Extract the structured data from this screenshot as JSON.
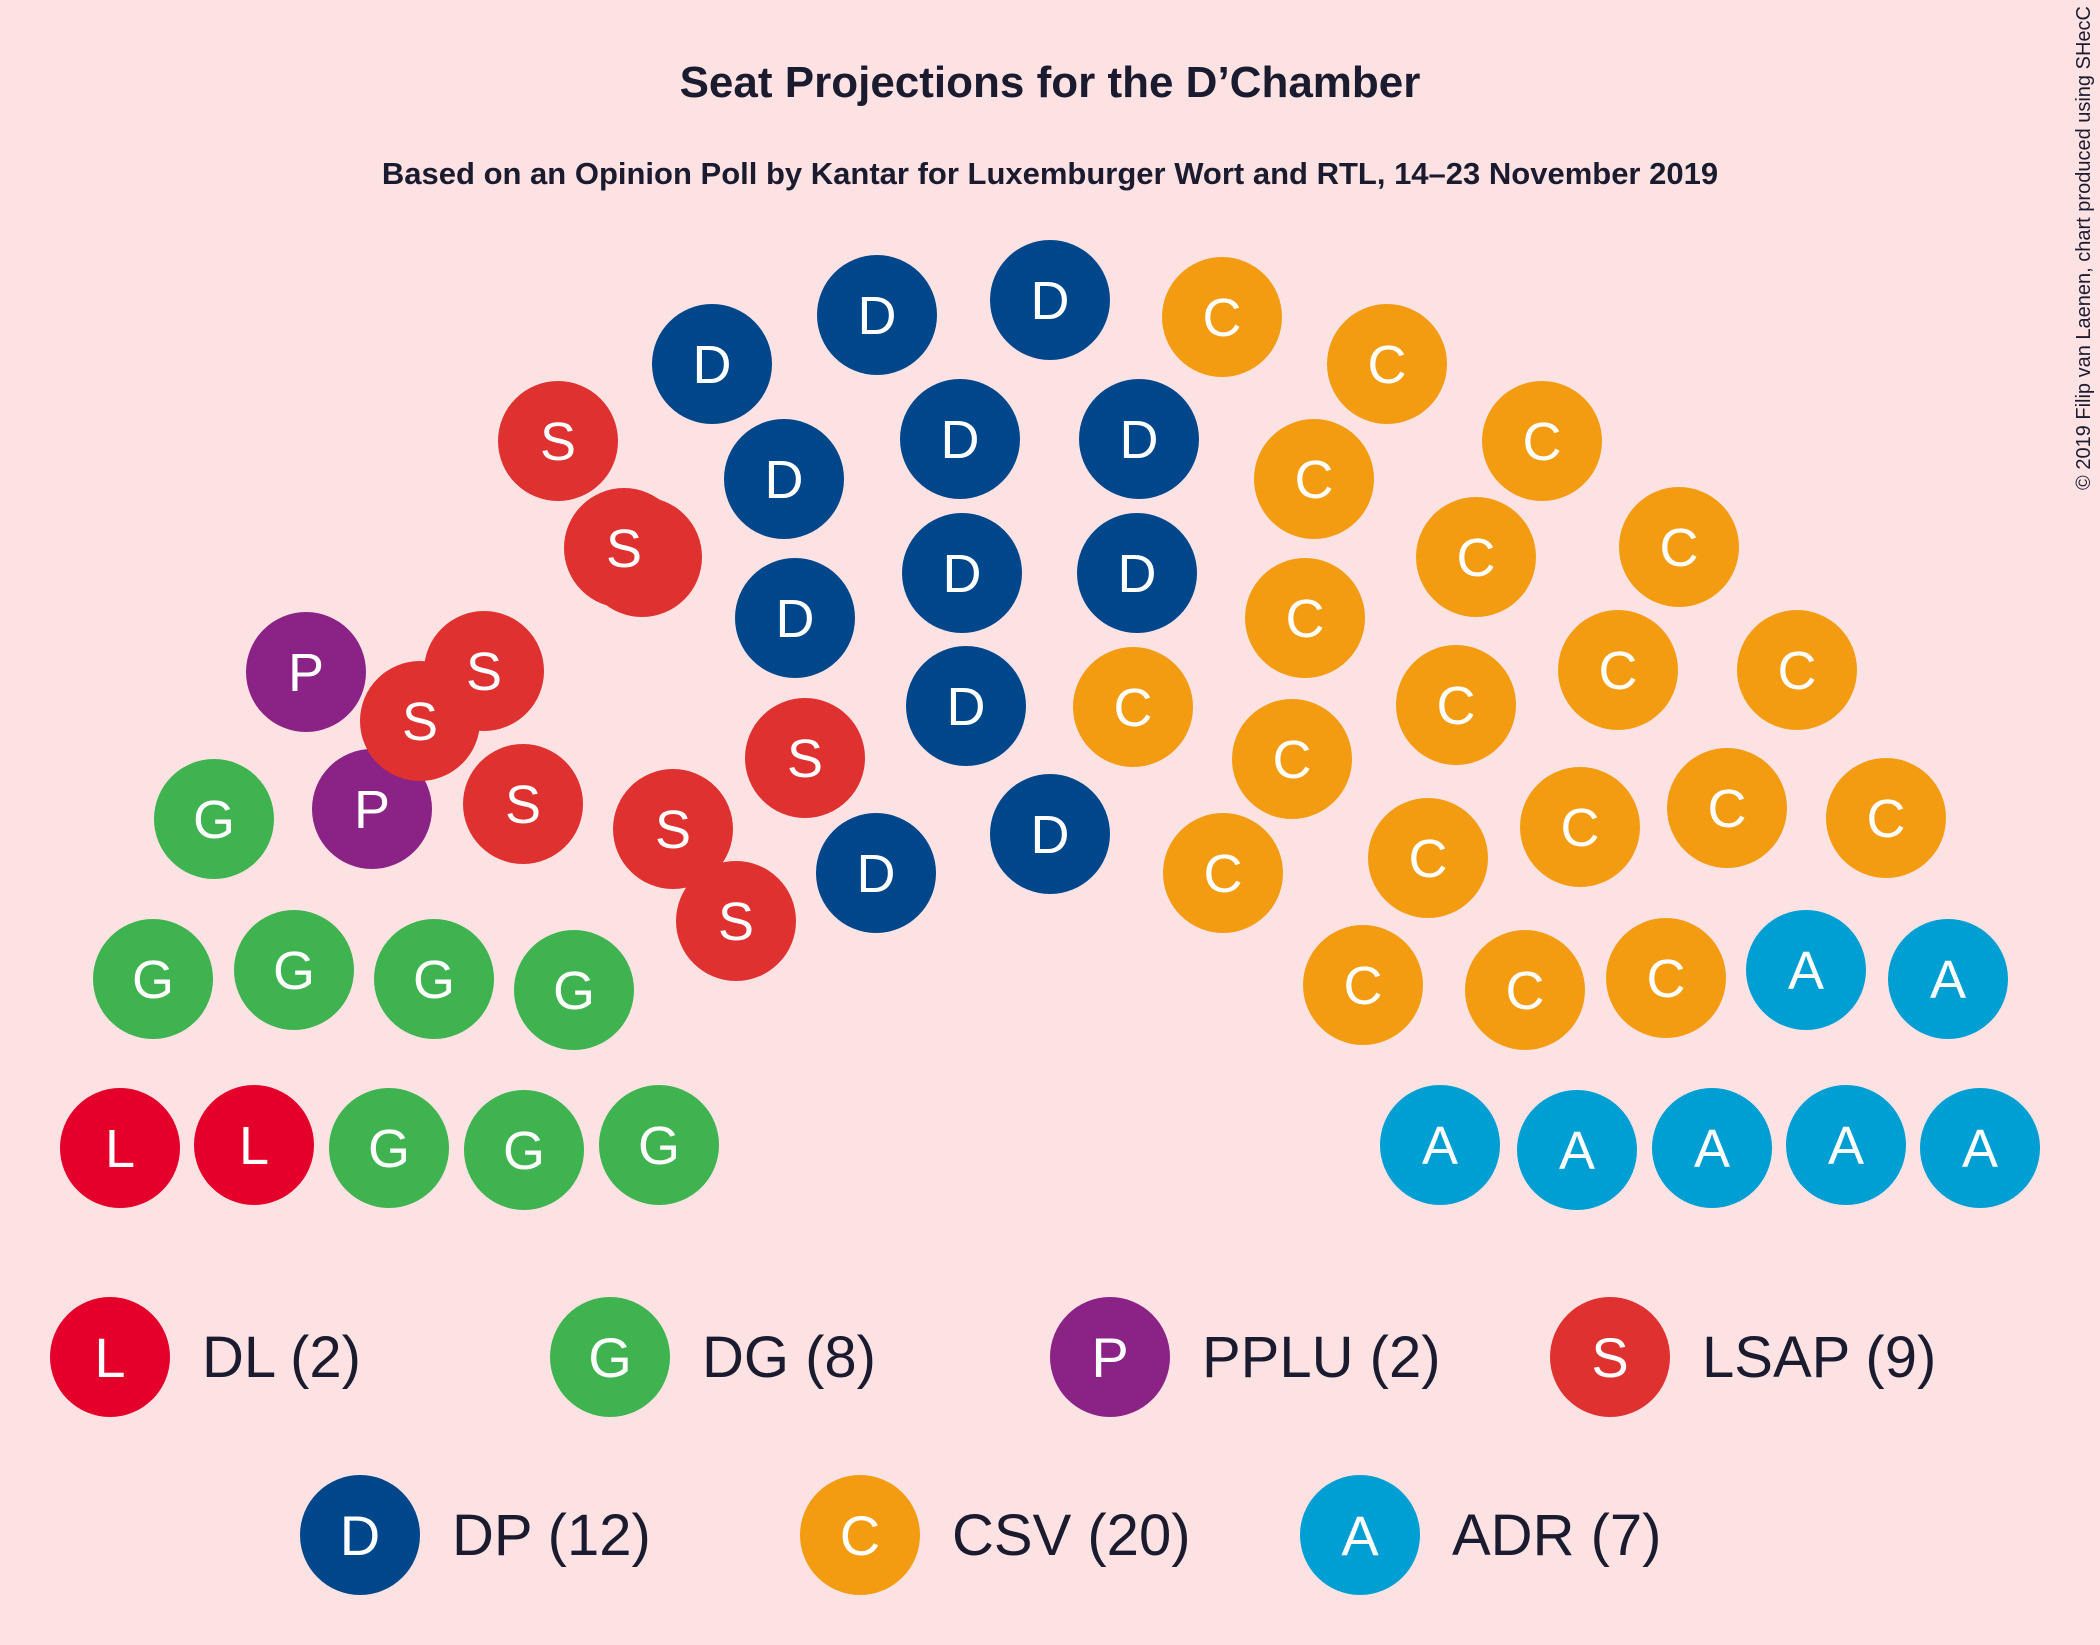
{
  "chart_data": {
    "type": "parliament",
    "title": "Seat Projections for the D’Chamber",
    "subtitle": "Based on an Opinion Poll by Kantar for Luxemburger Wort and RTL, 14–23 November 2019",
    "copyright": "© 2019 Filip van Laenen, chart produced using SHecC",
    "total_seats": 60,
    "parties": [
      {
        "name": "DL",
        "letter": "L",
        "seats": 2,
        "color": "#e4002b",
        "label": "DL (2)"
      },
      {
        "name": "DG",
        "letter": "G",
        "seats": 8,
        "color": "#3fb34f",
        "label": "DG (8)"
      },
      {
        "name": "PPLU",
        "letter": "P",
        "seats": 2,
        "color": "#8b2387",
        "label": "PPLU (2)"
      },
      {
        "name": "LSAP",
        "letter": "S",
        "seats": 9,
        "color": "#e03131",
        "label": "LSAP (9)"
      },
      {
        "name": "DP",
        "letter": "D",
        "seats": 12,
        "color": "#00468b",
        "label": "DP (12)"
      },
      {
        "name": "CSV",
        "letter": "C",
        "seats": 20,
        "color": "#f39c12",
        "label": "CSV (20)"
      },
      {
        "name": "ADR",
        "letter": "A",
        "seats": 7,
        "color": "#009fd3",
        "label": "ADR (7)"
      }
    ]
  }
}
